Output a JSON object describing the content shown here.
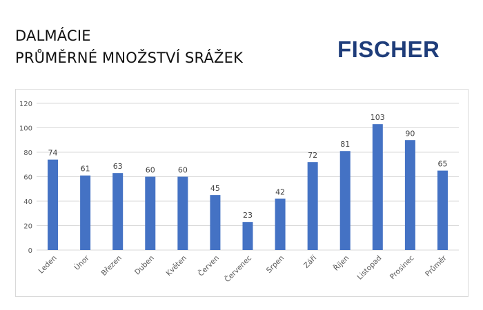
{
  "header": {
    "title_line1": "DALMÁCIE",
    "title_line2": "PRŮMĚRNÉ MNOŽSTVÍ SRÁŽEK"
  },
  "logo": {
    "text": "FISCHER",
    "color": "#1f3d7a"
  },
  "chart_data": {
    "type": "bar",
    "title": "",
    "xlabel": "",
    "ylabel": "",
    "ylim": [
      0,
      120
    ],
    "yticks": [
      0,
      20,
      40,
      60,
      80,
      100,
      120
    ],
    "grid": true,
    "legend": "none",
    "bar_color": "#4472c4",
    "categories": [
      "Leden",
      "Únor",
      "Březen",
      "Duben",
      "Květen",
      "Červen",
      "Červenec",
      "Srpen",
      "Září",
      "Říjen",
      "Listopad",
      "Prosinec",
      "Průměr"
    ],
    "values": [
      74,
      61,
      63,
      60,
      60,
      45,
      23,
      42,
      72,
      81,
      103,
      90,
      65
    ],
    "value_labels": [
      "74",
      "61",
      "63",
      "60",
      "60",
      "45",
      "23",
      "42",
      "72",
      "81",
      "103",
      "90",
      "65"
    ]
  }
}
